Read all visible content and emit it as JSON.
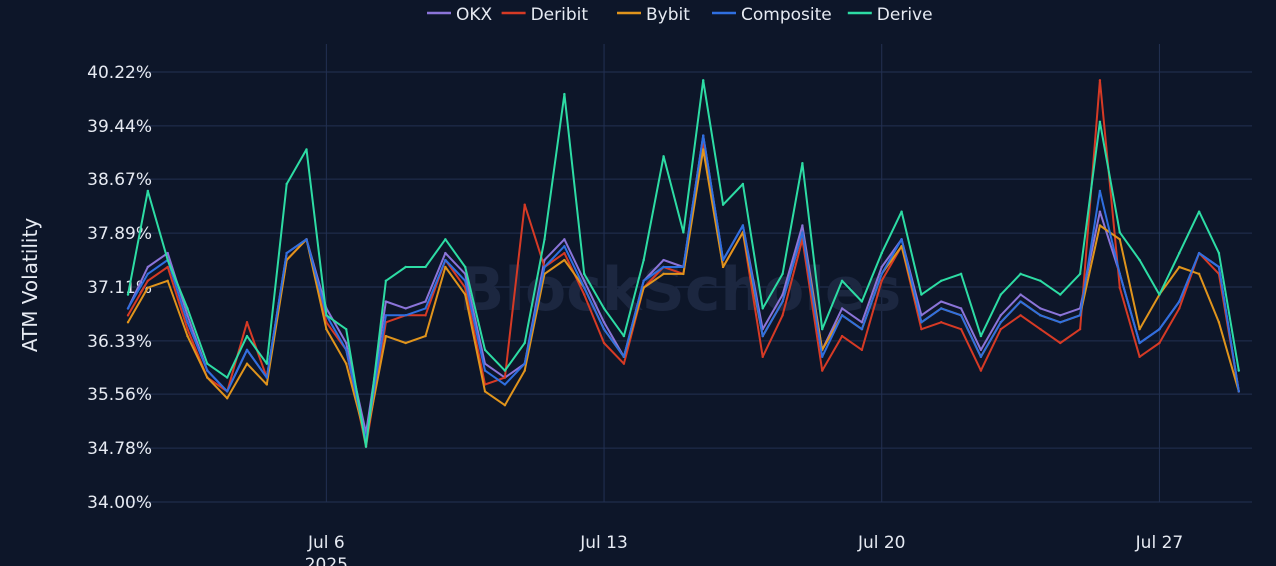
{
  "chart_data": {
    "type": "line",
    "ylabel": "ATM Volatility",
    "watermark": "BlockScholes",
    "yticks": [
      "40.22%",
      "39.44%",
      "38.67%",
      "37.89%",
      "37.11%",
      "36.33%",
      "35.56%",
      "34.78%",
      "34.00%"
    ],
    "ylim": [
      34.0,
      40.22
    ],
    "xlim": [
      "2025-07-01T00:00",
      "2025-07-29T08:00"
    ],
    "xticks": [
      {
        "date": "2025-07-06",
        "label": "Jul 6",
        "sublabel": "2025"
      },
      {
        "date": "2025-07-13",
        "label": "Jul 13",
        "sublabel": ""
      },
      {
        "date": "2025-07-20",
        "label": "Jul 20",
        "sublabel": ""
      },
      {
        "date": "2025-07-27",
        "label": "Jul 27",
        "sublabel": ""
      }
    ],
    "grid": true,
    "legend_position": "top-center",
    "x": [
      "2025-07-01",
      "2025-07-01T12:00",
      "2025-07-02",
      "2025-07-02T12:00",
      "2025-07-03",
      "2025-07-03T12:00",
      "2025-07-04",
      "2025-07-04T12:00",
      "2025-07-05",
      "2025-07-05T12:00",
      "2025-07-06",
      "2025-07-06T12:00",
      "2025-07-07",
      "2025-07-07T12:00",
      "2025-07-08",
      "2025-07-08T12:00",
      "2025-07-09",
      "2025-07-09T12:00",
      "2025-07-10",
      "2025-07-10T12:00",
      "2025-07-11",
      "2025-07-11T12:00",
      "2025-07-12",
      "2025-07-12T12:00",
      "2025-07-13",
      "2025-07-13T12:00",
      "2025-07-14",
      "2025-07-14T12:00",
      "2025-07-15",
      "2025-07-15T12:00",
      "2025-07-16",
      "2025-07-16T12:00",
      "2025-07-17",
      "2025-07-17T12:00",
      "2025-07-18",
      "2025-07-18T12:00",
      "2025-07-19",
      "2025-07-19T12:00",
      "2025-07-20",
      "2025-07-20T12:00",
      "2025-07-21",
      "2025-07-21T12:00",
      "2025-07-22",
      "2025-07-22T12:00",
      "2025-07-23",
      "2025-07-23T12:00",
      "2025-07-24",
      "2025-07-24T12:00",
      "2025-07-25",
      "2025-07-25T12:00",
      "2025-07-26",
      "2025-07-26T12:00",
      "2025-07-27",
      "2025-07-27T12:00",
      "2025-07-28",
      "2025-07-28T12:00",
      "2025-07-29"
    ],
    "series": [
      {
        "name": "OKX",
        "color": "#8b74d9",
        "values": [
          36.8,
          37.4,
          37.6,
          36.7,
          35.9,
          35.6,
          36.2,
          35.8,
          37.6,
          37.8,
          36.8,
          36.3,
          35.0,
          36.9,
          36.8,
          36.9,
          37.6,
          37.3,
          36.0,
          35.8,
          36.0,
          37.5,
          37.8,
          37.2,
          36.6,
          36.1,
          37.2,
          37.5,
          37.4,
          39.3,
          37.5,
          38.0,
          36.5,
          37.0,
          38.0,
          36.2,
          36.8,
          36.6,
          37.4,
          37.8,
          36.7,
          36.9,
          36.8,
          36.2,
          36.7,
          37.0,
          36.8,
          36.7,
          36.8,
          38.2,
          37.3,
          36.3,
          36.5,
          36.9,
          37.6,
          37.4,
          35.6
        ]
      },
      {
        "name": "Deribit",
        "color": "#d63a25",
        "values": [
          36.7,
          37.2,
          37.4,
          36.5,
          35.8,
          35.6,
          36.6,
          35.8,
          37.5,
          37.8,
          36.6,
          36.2,
          34.8,
          36.6,
          36.7,
          36.7,
          37.5,
          37.1,
          35.7,
          35.8,
          38.3,
          37.4,
          37.6,
          37.0,
          36.3,
          36.0,
          37.1,
          37.4,
          37.3,
          39.2,
          37.4,
          37.9,
          36.1,
          36.7,
          37.8,
          35.9,
          36.4,
          36.2,
          37.2,
          37.7,
          36.5,
          36.6,
          36.5,
          35.9,
          36.5,
          36.7,
          36.5,
          36.3,
          36.5,
          40.1,
          37.1,
          36.1,
          36.3,
          36.8,
          37.6,
          37.3,
          35.6
        ]
      },
      {
        "name": "Bybit",
        "color": "#e0941c",
        "values": [
          36.6,
          37.1,
          37.2,
          36.4,
          35.8,
          35.5,
          36.0,
          35.7,
          37.5,
          37.8,
          36.5,
          36.0,
          34.9,
          36.4,
          36.3,
          36.4,
          37.4,
          37.0,
          35.6,
          35.4,
          35.9,
          37.3,
          37.5,
          37.1,
          36.5,
          36.1,
          37.1,
          37.3,
          37.3,
          39.1,
          37.4,
          37.9,
          36.4,
          36.9,
          37.9,
          36.2,
          36.7,
          36.5,
          37.3,
          37.7,
          36.6,
          36.8,
          36.7,
          36.1,
          36.6,
          36.9,
          36.7,
          36.6,
          36.7,
          38.0,
          37.8,
          36.5,
          37.0,
          37.4,
          37.3,
          36.6,
          35.6
        ]
      },
      {
        "name": "Composite",
        "color": "#2f6fe0",
        "values": [
          36.8,
          37.3,
          37.5,
          36.6,
          35.9,
          35.6,
          36.2,
          35.8,
          37.6,
          37.8,
          36.7,
          36.2,
          34.9,
          36.7,
          36.7,
          36.8,
          37.5,
          37.2,
          35.9,
          35.7,
          36.0,
          37.4,
          37.7,
          37.1,
          36.5,
          36.1,
          37.2,
          37.4,
          37.4,
          39.3,
          37.5,
          38.0,
          36.4,
          36.9,
          37.9,
          36.1,
          36.7,
          36.5,
          37.3,
          37.8,
          36.6,
          36.8,
          36.7,
          36.1,
          36.6,
          36.9,
          36.7,
          36.6,
          36.7,
          38.5,
          37.3,
          36.3,
          36.5,
          36.9,
          37.6,
          37.4,
          35.6
        ]
      },
      {
        "name": "Derive",
        "color": "#2ddca4",
        "values": [
          37.0,
          38.5,
          37.5,
          36.8,
          36.0,
          35.8,
          36.4,
          36.0,
          38.6,
          39.1,
          36.7,
          36.5,
          34.8,
          37.2,
          37.4,
          37.4,
          37.8,
          37.4,
          36.2,
          35.9,
          36.3,
          37.8,
          39.9,
          37.3,
          36.8,
          36.4,
          37.5,
          39.0,
          37.9,
          40.1,
          38.3,
          38.6,
          36.8,
          37.3,
          38.9,
          36.5,
          37.2,
          36.9,
          37.6,
          38.2,
          37.0,
          37.2,
          37.3,
          36.4,
          37.0,
          37.3,
          37.2,
          37.0,
          37.3,
          39.5,
          37.9,
          37.5,
          37.0,
          37.6,
          38.2,
          37.6,
          35.9
        ]
      }
    ]
  }
}
